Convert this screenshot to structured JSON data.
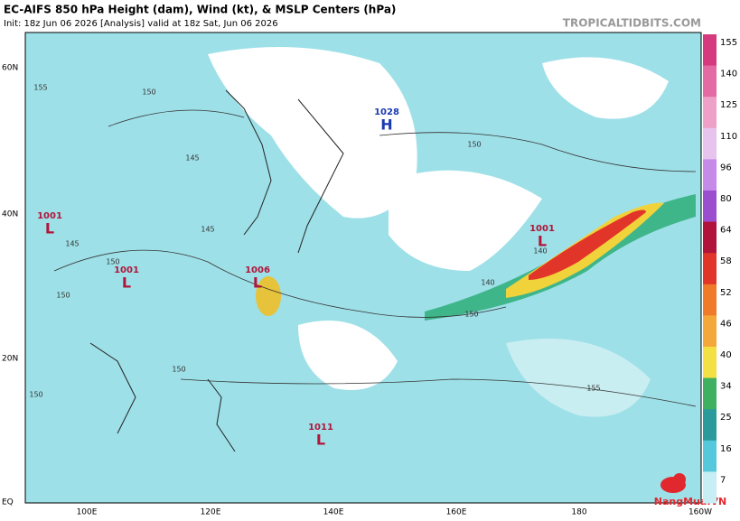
{
  "header": {
    "title": "EC-AIFS 850 hPa Height (dam), Wind (kt), & MSLP Centers (hPa)",
    "subtitle": "Init: 18z Jun 06 2026   [Analysis]   valid at 18z Sat, Jun 06 2026",
    "site": "TROPICALTIDBITS.COM"
  },
  "map": {
    "lat_labels": [
      "60N",
      "40N",
      "20N",
      "EQ"
    ],
    "lon_labels": [
      "100E",
      "120E",
      "140E",
      "160E",
      "180",
      "160W"
    ],
    "centers": [
      {
        "pressure": "1001",
        "letter": "L"
      },
      {
        "pressure": "1001",
        "letter": "L"
      },
      {
        "pressure": "1006",
        "letter": "L"
      },
      {
        "pressure": "1011",
        "letter": "L"
      },
      {
        "pressure": "1028",
        "letter": "H"
      },
      {
        "pressure": "1001",
        "letter": "L"
      }
    ],
    "contour_labels": [
      "155",
      "150",
      "145",
      "145",
      "150",
      "150",
      "145",
      "150",
      "140",
      "150",
      "155",
      "150",
      "150",
      "140"
    ]
  },
  "colorbar": {
    "labels": [
      "155",
      "140",
      "125",
      "110",
      "96",
      "80",
      "64",
      "58",
      "52",
      "46",
      "40",
      "34",
      "25",
      "16",
      "7"
    ]
  },
  "watermark": "NangMua.VN"
}
